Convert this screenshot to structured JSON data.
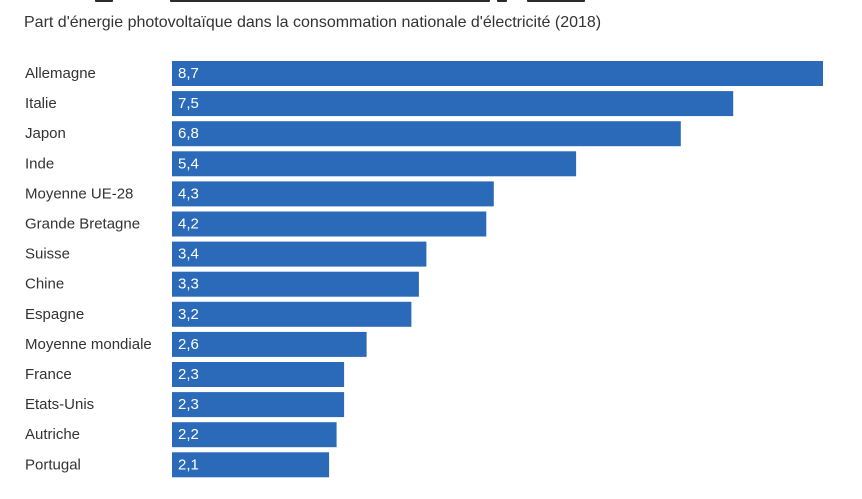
{
  "colors": {
    "bar": "#2a6ab8",
    "label": "#333333",
    "value_label": "#ffffff",
    "background": "#ffffff"
  },
  "chart_data": {
    "type": "bar",
    "orientation": "horizontal",
    "subtitle": "Part d'énergie photovoltaïque dans la consommation nationale d'électricité (2018)",
    "categories": [
      "Allemagne",
      "Italie",
      "Japon",
      "Inde",
      "Moyenne UE-28",
      "Grande Bretagne",
      "Suisse",
      "Chine",
      "Espagne",
      "Moyenne mondiale",
      "France",
      "Etats-Unis",
      "Autriche",
      "Portugal"
    ],
    "values": [
      8.7,
      7.5,
      6.8,
      5.4,
      4.3,
      4.2,
      3.4,
      3.3,
      3.2,
      2.6,
      2.3,
      2.3,
      2.2,
      2.1
    ],
    "value_labels": [
      "8,7",
      "7,5",
      "6,8",
      "5,4",
      "4,3",
      "4,2",
      "3,4",
      "3,3",
      "3,2",
      "2,6",
      "2,3",
      "2,3",
      "2,2",
      "2,1"
    ],
    "xlim": [
      0,
      8.7
    ],
    "grid": false,
    "legend": "none"
  }
}
